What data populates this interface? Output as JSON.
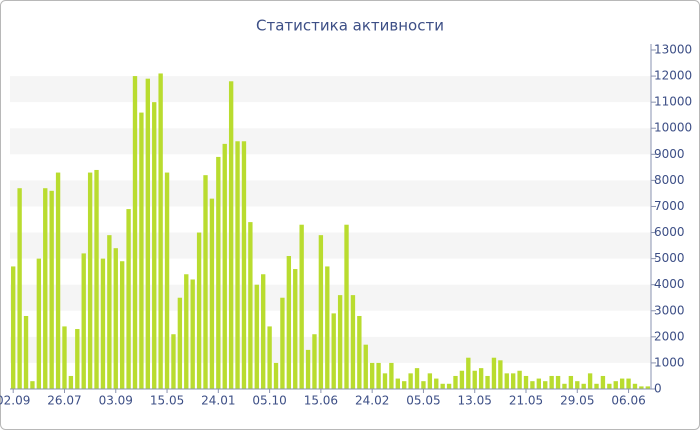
{
  "chart_data": {
    "type": "bar",
    "title": "Статистика активности",
    "categories": [
      "02.09",
      null,
      null,
      null,
      null,
      null,
      null,
      null,
      "26.07",
      null,
      null,
      null,
      null,
      null,
      null,
      null,
      "03.09",
      null,
      null,
      null,
      null,
      null,
      null,
      null,
      "15.05",
      null,
      null,
      null,
      null,
      null,
      null,
      null,
      "24.01",
      null,
      null,
      null,
      null,
      null,
      null,
      null,
      "05.10",
      null,
      null,
      null,
      null,
      null,
      null,
      null,
      "15.06",
      null,
      null,
      null,
      null,
      null,
      null,
      null,
      "24.02",
      null,
      null,
      null,
      null,
      null,
      null,
      null,
      "05.05",
      null,
      null,
      null,
      null,
      null,
      null,
      null,
      "13.05",
      null,
      null,
      null,
      null,
      null,
      null,
      null,
      "21.05",
      null,
      null,
      null,
      null,
      null,
      null,
      null,
      "29.05",
      null,
      null,
      null,
      null,
      null,
      null,
      null,
      "06.06",
      null,
      null,
      null
    ],
    "values": [
      4700,
      7700,
      2800,
      300,
      5000,
      7700,
      7600,
      8300,
      2400,
      500,
      2300,
      5200,
      8300,
      8400,
      5000,
      5900,
      5400,
      4900,
      6900,
      12000,
      10600,
      11900,
      11000,
      12100,
      8300,
      2100,
      3500,
      4400,
      4200,
      6000,
      8200,
      7300,
      8900,
      9400,
      11800,
      9500,
      9500,
      6400,
      4000,
      4400,
      2400,
      1000,
      3500,
      5100,
      4600,
      6300,
      1500,
      2100,
      5900,
      4700,
      2900,
      3600,
      6300,
      3600,
      2800,
      1700,
      1000,
      1000,
      600,
      1000,
      400,
      300,
      600,
      800,
      300,
      600,
      400,
      200,
      200,
      500,
      700,
      1200,
      700,
      800,
      500,
      1200,
      1100,
      600,
      600,
      700,
      500,
      300,
      400,
      300,
      500,
      500,
      200,
      500,
      300,
      200,
      600,
      200,
      500,
      200,
      300,
      400,
      400,
      200,
      100,
      100
    ],
    "color": "#b9dc2f",
    "ylim": [
      0,
      13000
    ],
    "yticks": [
      0,
      1000,
      2000,
      3000,
      4000,
      5000,
      6000,
      7000,
      8000,
      9000,
      10000,
      11000,
      12000,
      13000
    ],
    "grid": "bands",
    "y_axis_side": "right"
  }
}
